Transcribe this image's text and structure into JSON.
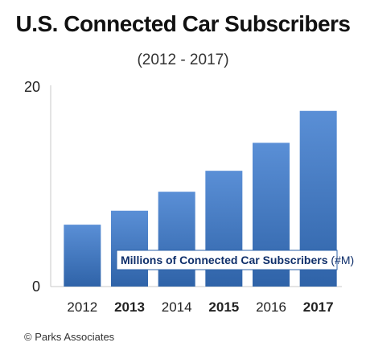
{
  "chart_data": {
    "type": "bar",
    "title": "U.S. Connected Car Subscribers",
    "subtitle": "(2012 - 2017)",
    "categories": [
      "2012",
      "2013",
      "2014",
      "2015",
      "2016",
      "2017"
    ],
    "bold_categories": [
      "2013",
      "2015",
      "2017"
    ],
    "values": [
      6.2,
      7.6,
      9.5,
      11.6,
      14.4,
      17.6
    ],
    "ylim": [
      0,
      20
    ],
    "yticks": [
      "0",
      "20"
    ],
    "legend": {
      "main": "Millions of Connected Car Subscribers",
      "unit": "(#M)",
      "placement": "inside-bottom-right"
    },
    "grid": false,
    "bar_color": "#2f63a8",
    "bar_color_light": "#5a8fd6"
  },
  "footer": {
    "credit": "© Parks Associates"
  }
}
